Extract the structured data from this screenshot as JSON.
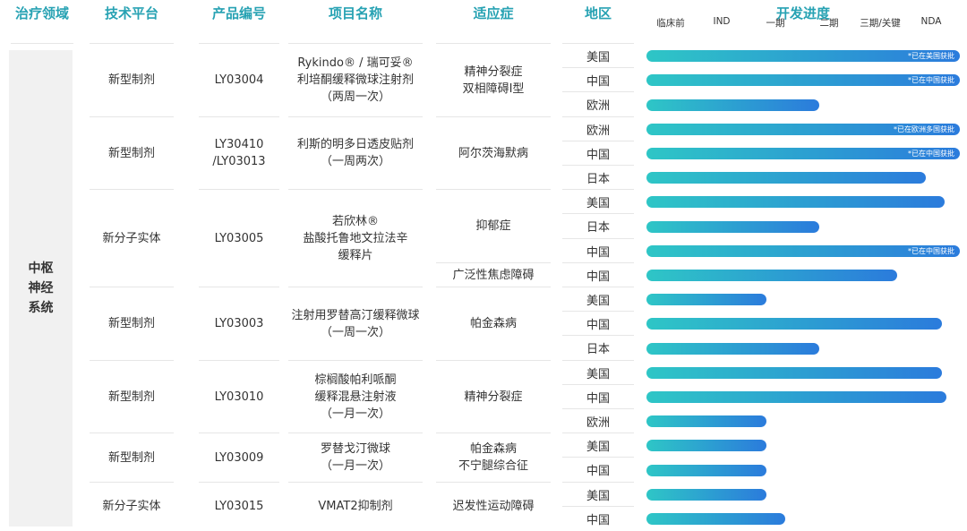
{
  "headers": {
    "area": "治疗领域",
    "platform": "技术平台",
    "code": "产品编号",
    "name": "项目名称",
    "indication": "适应症",
    "region": "地区",
    "progress": "开发进度"
  },
  "therapeutic_area": "中枢神经系统",
  "therapeutic_area_lines": [
    "中枢",
    "神经",
    "系统"
  ],
  "products": [
    {
      "platform": "新型制剂",
      "code": "LY03004",
      "name": "Rykindo® / 瑞可妥®\n利培酮缓释微球注射剂\n（两周一次）"
    },
    {
      "platform": "新型制剂",
      "code": "LY30410\n/LY03013",
      "name": "利斯的明多日透皮贴剂\n（一周两次）"
    },
    {
      "platform": "新分子实体",
      "code": "LY03005",
      "name": "若欣林®\n盐酸托鲁地文拉法辛\n缓释片"
    },
    {
      "platform": "新型制剂",
      "code": "LY03003",
      "name": "注射用罗替高汀缓释微球\n（一周一次）"
    },
    {
      "platform": "新型制剂",
      "code": "LY03010",
      "name": "棕榈酸帕利哌酮\n缓释混悬注射液\n（一月一次）"
    },
    {
      "platform": "新型制剂",
      "code": "LY03009",
      "name": "罗替戈汀微球\n（一月一次）"
    },
    {
      "platform": "新分子实体",
      "code": "LY03015",
      "name": "VMAT2抑制剂"
    }
  ],
  "indications": [
    "精神分裂症\n双相障碍I型",
    "阿尔茨海默病",
    "抑郁症",
    "广泛性焦虑障碍",
    "帕金森病",
    "精神分裂症",
    "帕金森病\n不宁腿综合征",
    "迟发性运动障碍"
  ],
  "chart_data": {
    "type": "bar",
    "orientation": "horizontal",
    "title": "开发进度",
    "stages": [
      "临床前",
      "IND",
      "一期",
      "二期",
      "三期/关键",
      "NDA"
    ],
    "stage_scale_note": "stage index: 0=临床前, 1=IND, 2=一期, 3=二期, 4=三期/关键, 5=NDA, 6=获批",
    "xlim": [
      0,
      6
    ],
    "series": [
      {
        "name": "开发进度",
        "categories": [
          "美国",
          "中国",
          "欧洲",
          "欧洲",
          "中国",
          "日本",
          "美国",
          "日本",
          "中国",
          "中国",
          "美国",
          "中国",
          "日本",
          "美国",
          "中国",
          "欧洲",
          "美国",
          "中国",
          "美国",
          "中国"
        ],
        "values": [
          6.0,
          6.0,
          3.3,
          6.0,
          6.0,
          5.35,
          5.7,
          3.3,
          6.0,
          4.8,
          2.3,
          5.65,
          3.3,
          5.65,
          5.75,
          2.3,
          2.3,
          2.3,
          2.3,
          2.65
        ],
        "annotations": [
          "*已在美国获批",
          "*已在中国获批",
          "",
          "*已在欧洲多国获批",
          "*已在中国获批",
          "",
          "",
          "",
          "*已在中国获批",
          "",
          "",
          "",
          "",
          "",
          "",
          "",
          "",
          "",
          "",
          ""
        ]
      }
    ]
  }
}
